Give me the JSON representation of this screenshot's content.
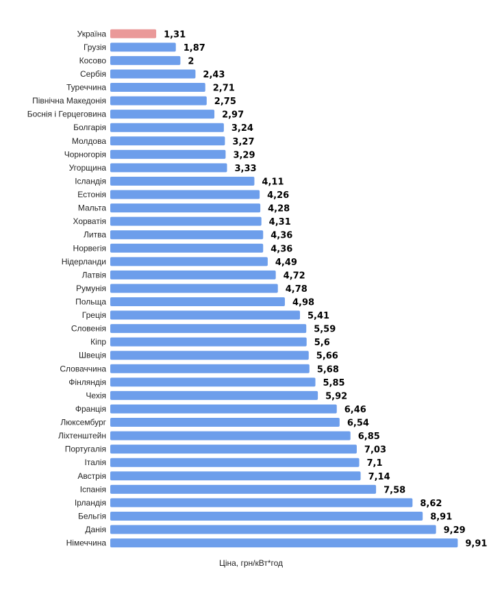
{
  "chart_data": {
    "type": "bar",
    "orientation": "horizontal",
    "xlabel": "Ціна, грн/кВт*год",
    "xlim": [
      0,
      10
    ],
    "grid": false,
    "colors": {
      "default": "#6d9eeb",
      "highlight": "#ea9999"
    },
    "highlight_category": "Україна",
    "categories": [
      "Україна",
      "Грузія",
      "Косово",
      "Сербія",
      "Туреччина",
      "Північна Македонія",
      "Боснія і Герцеговина",
      "Болгарія",
      "Молдова",
      "Чорногорія",
      "Угорщина",
      "Ісландія",
      "Естонія",
      "Мальта",
      "Хорватія",
      "Литва",
      "Норвегія",
      "Нідерланди",
      "Латвія",
      "Румунія",
      "Польща",
      "Греція",
      "Словенія",
      "Кіпр",
      "Швеція",
      "Словаччина",
      "Фінляндія",
      "Чехія",
      "Франція",
      "Люксембург",
      "Ліхтенштейн",
      "Португалія",
      "Італія",
      "Австрія",
      "Іспанія",
      "Ірландія",
      "Бельгія",
      "Данія",
      "Німеччина"
    ],
    "values": [
      1.31,
      1.87,
      2,
      2.43,
      2.71,
      2.75,
      2.97,
      3.24,
      3.27,
      3.29,
      3.33,
      4.11,
      4.26,
      4.28,
      4.31,
      4.36,
      4.36,
      4.49,
      4.72,
      4.78,
      4.98,
      5.41,
      5.59,
      5.6,
      5.66,
      5.68,
      5.85,
      5.92,
      6.46,
      6.54,
      6.85,
      7.03,
      7.1,
      7.14,
      7.58,
      8.62,
      8.91,
      9.29,
      9.91
    ],
    "value_labels": [
      "1,31",
      "1,87",
      "2",
      "2,43",
      "2,71",
      "2,75",
      "2,97",
      "3,24",
      "3,27",
      "3,29",
      "3,33",
      "4,11",
      "4,26",
      "4,28",
      "4,31",
      "4,36",
      "4,36",
      "4,49",
      "4,72",
      "4,78",
      "4,98",
      "5,41",
      "5,59",
      "5,6",
      "5,66",
      "5,68",
      "5,85",
      "5,92",
      "6,46",
      "6,54",
      "6,85",
      "7,03",
      "7,1",
      "7,14",
      "7,58",
      "8,62",
      "8,91",
      "9,29",
      "9,91"
    ]
  }
}
